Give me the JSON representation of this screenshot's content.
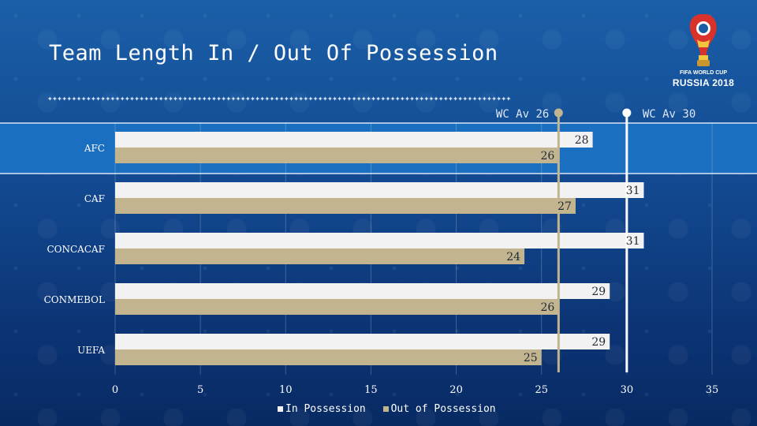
{
  "slide": {
    "title": "Team Length In / Out Of Possession",
    "divider_text": "✦✦✦✦✦✦✦✦✦✦✦✦✦✦✦✦✦✦✦✦✦✦✦✦✦✦✦✦✦✦✦✦✦✦✦✦✦✦✦✦✦✦✦✦✦✦✦✦✦✦✦✦✦✦✦✦✦✦✦✦✦✦✦✦✦✦✦✦✦✦✦✦✦✦✦✦✦✦✦✦✦✦✦✦✦✦✦✦✦✦✦✦✦✦✦✦",
    "logo_line1": "FIFA WORLD CUP",
    "logo_line2": "RUSSIA 2018"
  },
  "chart_data": {
    "type": "bar",
    "orientation": "horizontal",
    "title": "Team Length In / Out Of Possession",
    "categories": [
      "AFC",
      "CAF",
      "CONCACAF",
      "CONMEBOL",
      "UEFA"
    ],
    "highlighted_category": "AFC",
    "series": [
      {
        "name": "In Possession",
        "values": [
          28,
          31,
          31,
          29,
          29
        ],
        "color": "#f2f2f2"
      },
      {
        "name": "Out of Possession",
        "values": [
          26,
          27,
          24,
          26,
          25
        ],
        "color": "#c2b48f"
      }
    ],
    "xlim": [
      0,
      35
    ],
    "xticks": [
      0,
      5,
      10,
      15,
      20,
      25,
      30,
      35
    ],
    "reference_lines": [
      {
        "label": "WC Av 26",
        "value": 26,
        "color": "#c2b48f"
      },
      {
        "label": "WC Av 30",
        "value": 30,
        "color": "#ffffff"
      }
    ],
    "legend_position": "bottom"
  },
  "colors": {
    "highlight_band": "#1b6fc0",
    "value_label": "#1f2a36",
    "axis_text": "#ffffff"
  }
}
